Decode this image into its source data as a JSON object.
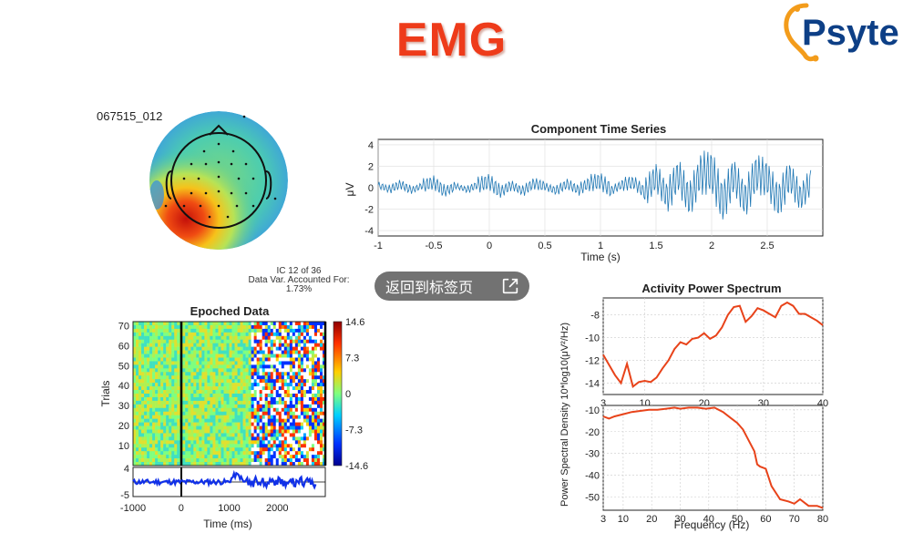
{
  "slide": {
    "title": "EMG",
    "logo_text": "Psyte",
    "dataset_label": "067515_012",
    "ic_info": {
      "line1": "IC 12 of 36",
      "line2": "Data Var. Accounted For:",
      "line3": "1.73%"
    }
  },
  "back_button": {
    "label": "返回到标签页",
    "icon": "external-link-icon"
  },
  "colors": {
    "title": "#ee3b1a",
    "series": "#1f77b4",
    "spectrum": "#e8431a",
    "erp": "#1030e8"
  },
  "time_series": {
    "title": "Component Time Series",
    "ylabel": "μV",
    "xlabel": "Time (s)",
    "x_ticks": [
      "-1",
      "-0.5",
      "0",
      "0.5",
      "1",
      "1.5",
      "2",
      "2.5"
    ],
    "y_ticks": [
      "4",
      "2",
      "0",
      "-2",
      "-4"
    ]
  },
  "epoched": {
    "title": "Epoched Data",
    "ylabel": "Trials",
    "xlabel": "Time (ms)",
    "y_ticks": [
      "70",
      "60",
      "50",
      "40",
      "30",
      "20",
      "10"
    ],
    "x_ticks": [
      "-1000",
      "0",
      "1000",
      "2000"
    ],
    "erp_ticks": [
      "4",
      "-5"
    ],
    "colorbar_ticks": [
      "14.6",
      "7.3",
      "0",
      "-7.3",
      "-14.6"
    ]
  },
  "spectrum": {
    "title": "Activity Power Spectrum",
    "ylabel": "Power Spectral Density 10*log10(μV²/Hz)",
    "xlabel": "Frequency (Hz)",
    "top_x_ticks": [
      "3",
      "10",
      "20",
      "30",
      "40"
    ],
    "top_y_ticks": [
      "-8",
      "-10",
      "-12",
      "-14"
    ],
    "bottom_x_ticks": [
      "3",
      "10",
      "20",
      "30",
      "40",
      "50",
      "60",
      "70",
      "80"
    ],
    "bottom_y_ticks": [
      "-10",
      "-20",
      "-30",
      "-40",
      "-50"
    ]
  },
  "chart_data": [
    {
      "type": "line",
      "title": "Activity Power Spectrum",
      "xlabel": "",
      "ylabel": "Power Spectral Density 10*log10(μV²/Hz)",
      "xlim": [
        3,
        40
      ],
      "ylim": [
        -15,
        -6.5
      ],
      "x": [
        3,
        4,
        5,
        6,
        7,
        8,
        9,
        10,
        11,
        12,
        13,
        14,
        15,
        16,
        17,
        18,
        19,
        20,
        21,
        22,
        23,
        24,
        25,
        26,
        27,
        28,
        29,
        30,
        31,
        32,
        33,
        34,
        35,
        36,
        37,
        38,
        39,
        40
      ],
      "values": [
        -11.5,
        -12.4,
        -13.3,
        -14.0,
        -12.3,
        -14.3,
        -13.9,
        -13.8,
        -13.9,
        -13.5,
        -12.7,
        -12.0,
        -11.0,
        -10.4,
        -10.6,
        -10.1,
        -10.0,
        -9.6,
        -10.1,
        -9.8,
        -9.1,
        -8.0,
        -7.3,
        -7.2,
        -8.6,
        -8.1,
        -7.4,
        -7.6,
        -7.9,
        -8.2,
        -7.2,
        -6.9,
        -7.2,
        -7.9,
        -7.9,
        -8.2,
        -8.5,
        -8.9
      ]
    },
    {
      "type": "line",
      "title": "",
      "xlabel": "Frequency (Hz)",
      "ylabel": "",
      "xlim": [
        3,
        80
      ],
      "ylim": [
        -56,
        -8
      ],
      "x": [
        3,
        5,
        7,
        10,
        13,
        16,
        19,
        22,
        25,
        28,
        30,
        33,
        36,
        39,
        42,
        45,
        48,
        50,
        52,
        54,
        56,
        57,
        58,
        60,
        62,
        65,
        68,
        70,
        72,
        75,
        78,
        80
      ],
      "values": [
        -13,
        -14,
        -13,
        -12,
        -11,
        -10.5,
        -10,
        -10,
        -9.5,
        -9,
        -9.5,
        -9,
        -9,
        -9.5,
        -9,
        -11,
        -14,
        -16,
        -19,
        -24,
        -29,
        -35,
        -36,
        -37,
        -45,
        -51,
        -52,
        -53,
        -51,
        -54,
        -54,
        -55
      ]
    },
    {
      "type": "line",
      "title": "Component Time Series",
      "xlabel": "Time (s)",
      "ylabel": "μV",
      "xlim": [
        -1,
        3
      ],
      "ylim": [
        -4.5,
        4.5
      ],
      "note_free": true,
      "x": [
        -1.0,
        -0.9,
        -0.8,
        -0.7,
        -0.6,
        -0.5,
        -0.4,
        -0.3,
        -0.2,
        -0.1,
        0.0,
        0.1,
        0.2,
        0.3,
        0.4,
        0.5,
        0.6,
        0.7,
        0.8,
        0.9,
        1.0,
        1.1,
        1.2,
        1.3,
        1.4,
        1.5,
        1.6,
        1.7,
        1.8,
        1.9,
        2.0,
        2.1,
        2.2,
        2.3,
        2.4,
        2.5,
        2.6,
        2.7,
        2.8,
        2.9
      ],
      "values": [
        0.6,
        -0.4,
        0.8,
        -0.6,
        0.5,
        1.2,
        -0.9,
        0.4,
        -0.5,
        0.7,
        1.4,
        -1.0,
        0.6,
        -0.8,
        1.0,
        0.3,
        -0.7,
        0.9,
        -0.5,
        1.1,
        1.5,
        -0.6,
        0.8,
        1.2,
        -1.1,
        2.5,
        -2.2,
        3.0,
        -2.8,
        3.2,
        3.8,
        -3.5,
        2.9,
        -3.0,
        3.4,
        2.1,
        -3.1,
        2.6,
        -2.4,
        1.8
      ]
    }
  ]
}
